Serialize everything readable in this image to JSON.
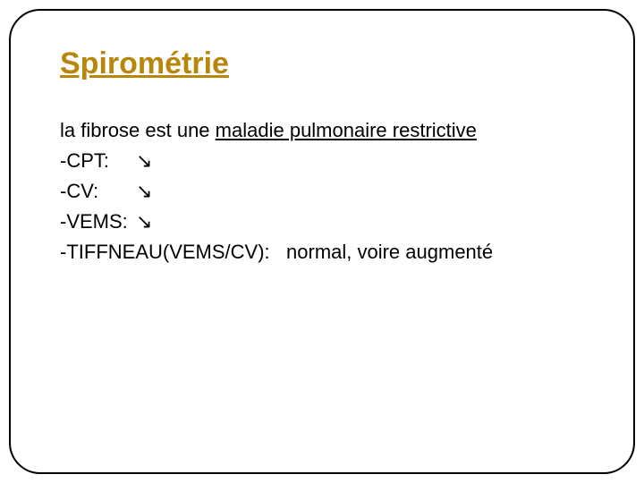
{
  "title": "Spirométrie",
  "intro_prefix": "la fibrose est une ",
  "intro_underlined": "maladie pulmonaire restrictive",
  "lines": {
    "cpt": {
      "label": "-CPT:",
      "arrow": "↘"
    },
    "cv": {
      "label": "-CV:",
      "arrow": "↘"
    },
    "vems": {
      "label": "-VEMS:",
      "arrow": "↘"
    },
    "tiffneau": {
      "label": "-TIFFNEAU(VEMS/CV):",
      "value": "normal, voire augmenté"
    }
  },
  "colors": {
    "title": "#b8860b",
    "text": "#000000",
    "border": "#000000",
    "background": "#ffffff"
  },
  "typography": {
    "title_fontsize": 34,
    "body_fontsize": 22,
    "font_family": "Arial"
  },
  "layout": {
    "border_radius": 35,
    "border_width": 2
  }
}
